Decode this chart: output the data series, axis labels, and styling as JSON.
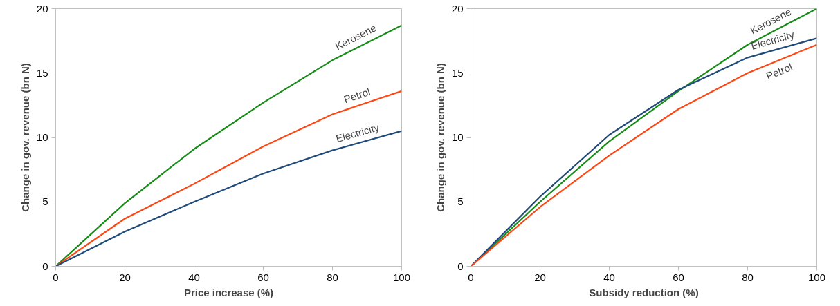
{
  "chart_data": [
    {
      "type": "line",
      "xlabel": "Price increase (%)",
      "ylabel": "Change in gov. revenue (bn N)",
      "x": [
        0,
        20,
        40,
        60,
        80,
        100
      ],
      "xlim": [
        0,
        100
      ],
      "xticks": [
        0,
        20,
        40,
        60,
        80,
        100
      ],
      "ylim": [
        0,
        20
      ],
      "yticks": [
        0,
        5,
        10,
        15,
        20
      ],
      "series": [
        {
          "name": "Kerosene",
          "color": "#168c17",
          "values": [
            0,
            4.9,
            9.1,
            12.7,
            16.0,
            18.7
          ]
        },
        {
          "name": "Petrol",
          "color": "#ff4512",
          "values": [
            0,
            3.7,
            6.4,
            9.3,
            11.8,
            13.6
          ]
        },
        {
          "name": "Electricity",
          "color": "#1f4a7a",
          "values": [
            0,
            2.7,
            5.0,
            7.2,
            9.0,
            10.5
          ]
        }
      ]
    },
    {
      "type": "line",
      "xlabel": "Subsidy reduction (%)",
      "ylabel": "Change in gov. revenue (bn N)",
      "x": [
        0,
        20,
        40,
        60,
        80,
        100
      ],
      "xlim": [
        0,
        100
      ],
      "xticks": [
        0,
        20,
        40,
        60,
        80,
        100
      ],
      "ylim": [
        0,
        20
      ],
      "yticks": [
        0,
        5,
        10,
        15,
        20
      ],
      "series": [
        {
          "name": "Kerosene",
          "color": "#168c17",
          "values": [
            0,
            5.0,
            9.7,
            13.6,
            17.2,
            20.0
          ]
        },
        {
          "name": "Electricity",
          "color": "#1f4a7a",
          "values": [
            0,
            5.4,
            10.2,
            13.7,
            16.2,
            17.7
          ]
        },
        {
          "name": "Petrol",
          "color": "#ff4512",
          "values": [
            0,
            4.6,
            8.6,
            12.2,
            15.0,
            17.2
          ]
        }
      ]
    }
  ]
}
